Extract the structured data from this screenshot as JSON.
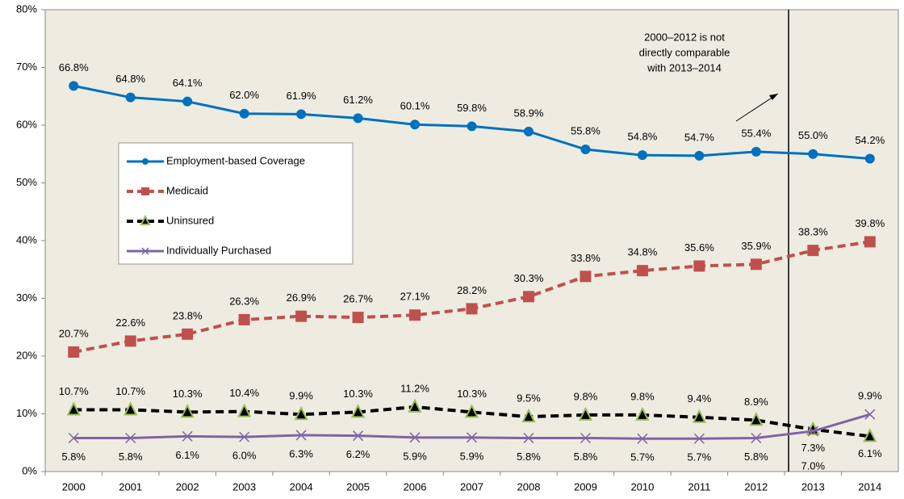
{
  "chart_data": {
    "type": "line",
    "categories": [
      "2000",
      "2001",
      "2002",
      "2003",
      "2004",
      "2005",
      "2006",
      "2007",
      "2008",
      "2009",
      "2010",
      "2011",
      "2012",
      "2013",
      "2014"
    ],
    "series": [
      {
        "name": "Employment-based Coverage",
        "color": "#0070c0",
        "marker": "circle",
        "dashed": false,
        "values": [
          66.8,
          64.8,
          64.1,
          62.0,
          61.9,
          61.2,
          60.1,
          59.8,
          58.9,
          55.8,
          54.8,
          54.7,
          55.4,
          55.0,
          54.2
        ],
        "value_labels": [
          "66.8%",
          "64.8%",
          "64.1%",
          "62.0%",
          "61.9%",
          "61.2%",
          "60.1%",
          "59.8%",
          "58.9%",
          "55.8%",
          "54.8%",
          "54.7%",
          "55.4%",
          "55.0%",
          "54.2%"
        ]
      },
      {
        "name": "Medicaid",
        "color": "#c0504d",
        "marker": "square",
        "dashed": true,
        "values": [
          20.7,
          22.6,
          23.8,
          26.3,
          26.9,
          26.7,
          27.1,
          28.2,
          30.3,
          33.8,
          34.8,
          35.6,
          35.9,
          38.3,
          39.8
        ],
        "value_labels": [
          "20.7%",
          "22.6%",
          "23.8%",
          "26.3%",
          "26.9%",
          "26.7%",
          "27.1%",
          "28.2%",
          "30.3%",
          "33.8%",
          "34.8%",
          "35.6%",
          "35.9%",
          "38.3%",
          "39.8%"
        ]
      },
      {
        "name": "Uninsured",
        "color": "#000000",
        "marker": "triangle",
        "dashed": true,
        "values": [
          10.7,
          10.7,
          10.3,
          10.4,
          9.9,
          10.3,
          11.2,
          10.3,
          9.5,
          9.8,
          9.8,
          9.4,
          8.9,
          7.3,
          6.1
        ],
        "value_labels": [
          "10.7%",
          "10.7%",
          "10.3%",
          "10.4%",
          "9.9%",
          "10.3%",
          "11.2%",
          "10.3%",
          "9.5%",
          "9.8%",
          "9.8%",
          "9.4%",
          "8.9%",
          "7.3%",
          "6.1%"
        ]
      },
      {
        "name": "Individually Purchased",
        "color": "#8064a2",
        "marker": "x",
        "dashed": false,
        "values": [
          5.8,
          5.8,
          6.1,
          6.0,
          6.3,
          6.2,
          5.9,
          5.9,
          5.8,
          5.8,
          5.7,
          5.7,
          5.8,
          7.0,
          9.9
        ],
        "value_labels": [
          "5.8%",
          "5.8%",
          "6.1%",
          "6.0%",
          "6.3%",
          "6.2%",
          "5.9%",
          "5.9%",
          "5.8%",
          "5.8%",
          "5.7%",
          "5.7%",
          "5.8%",
          "7.0%",
          "9.9%"
        ]
      }
    ],
    "annotation": [
      "2000–2012 is not",
      "directly comparable",
      "with 2013–2014"
    ],
    "ylim": [
      0,
      80
    ],
    "yticks": [
      {
        "value": 0,
        "label": "0%"
      },
      {
        "value": 10,
        "label": "10%"
      },
      {
        "value": 20,
        "label": "20%"
      },
      {
        "value": 30,
        "label": "30%"
      },
      {
        "value": 40,
        "label": "40%"
      },
      {
        "value": 50,
        "label": "50%"
      },
      {
        "value": 60,
        "label": "60%"
      },
      {
        "value": 70,
        "label": "70%"
      },
      {
        "value": 80,
        "label": "80%"
      }
    ],
    "grid": false,
    "legend": "left"
  }
}
